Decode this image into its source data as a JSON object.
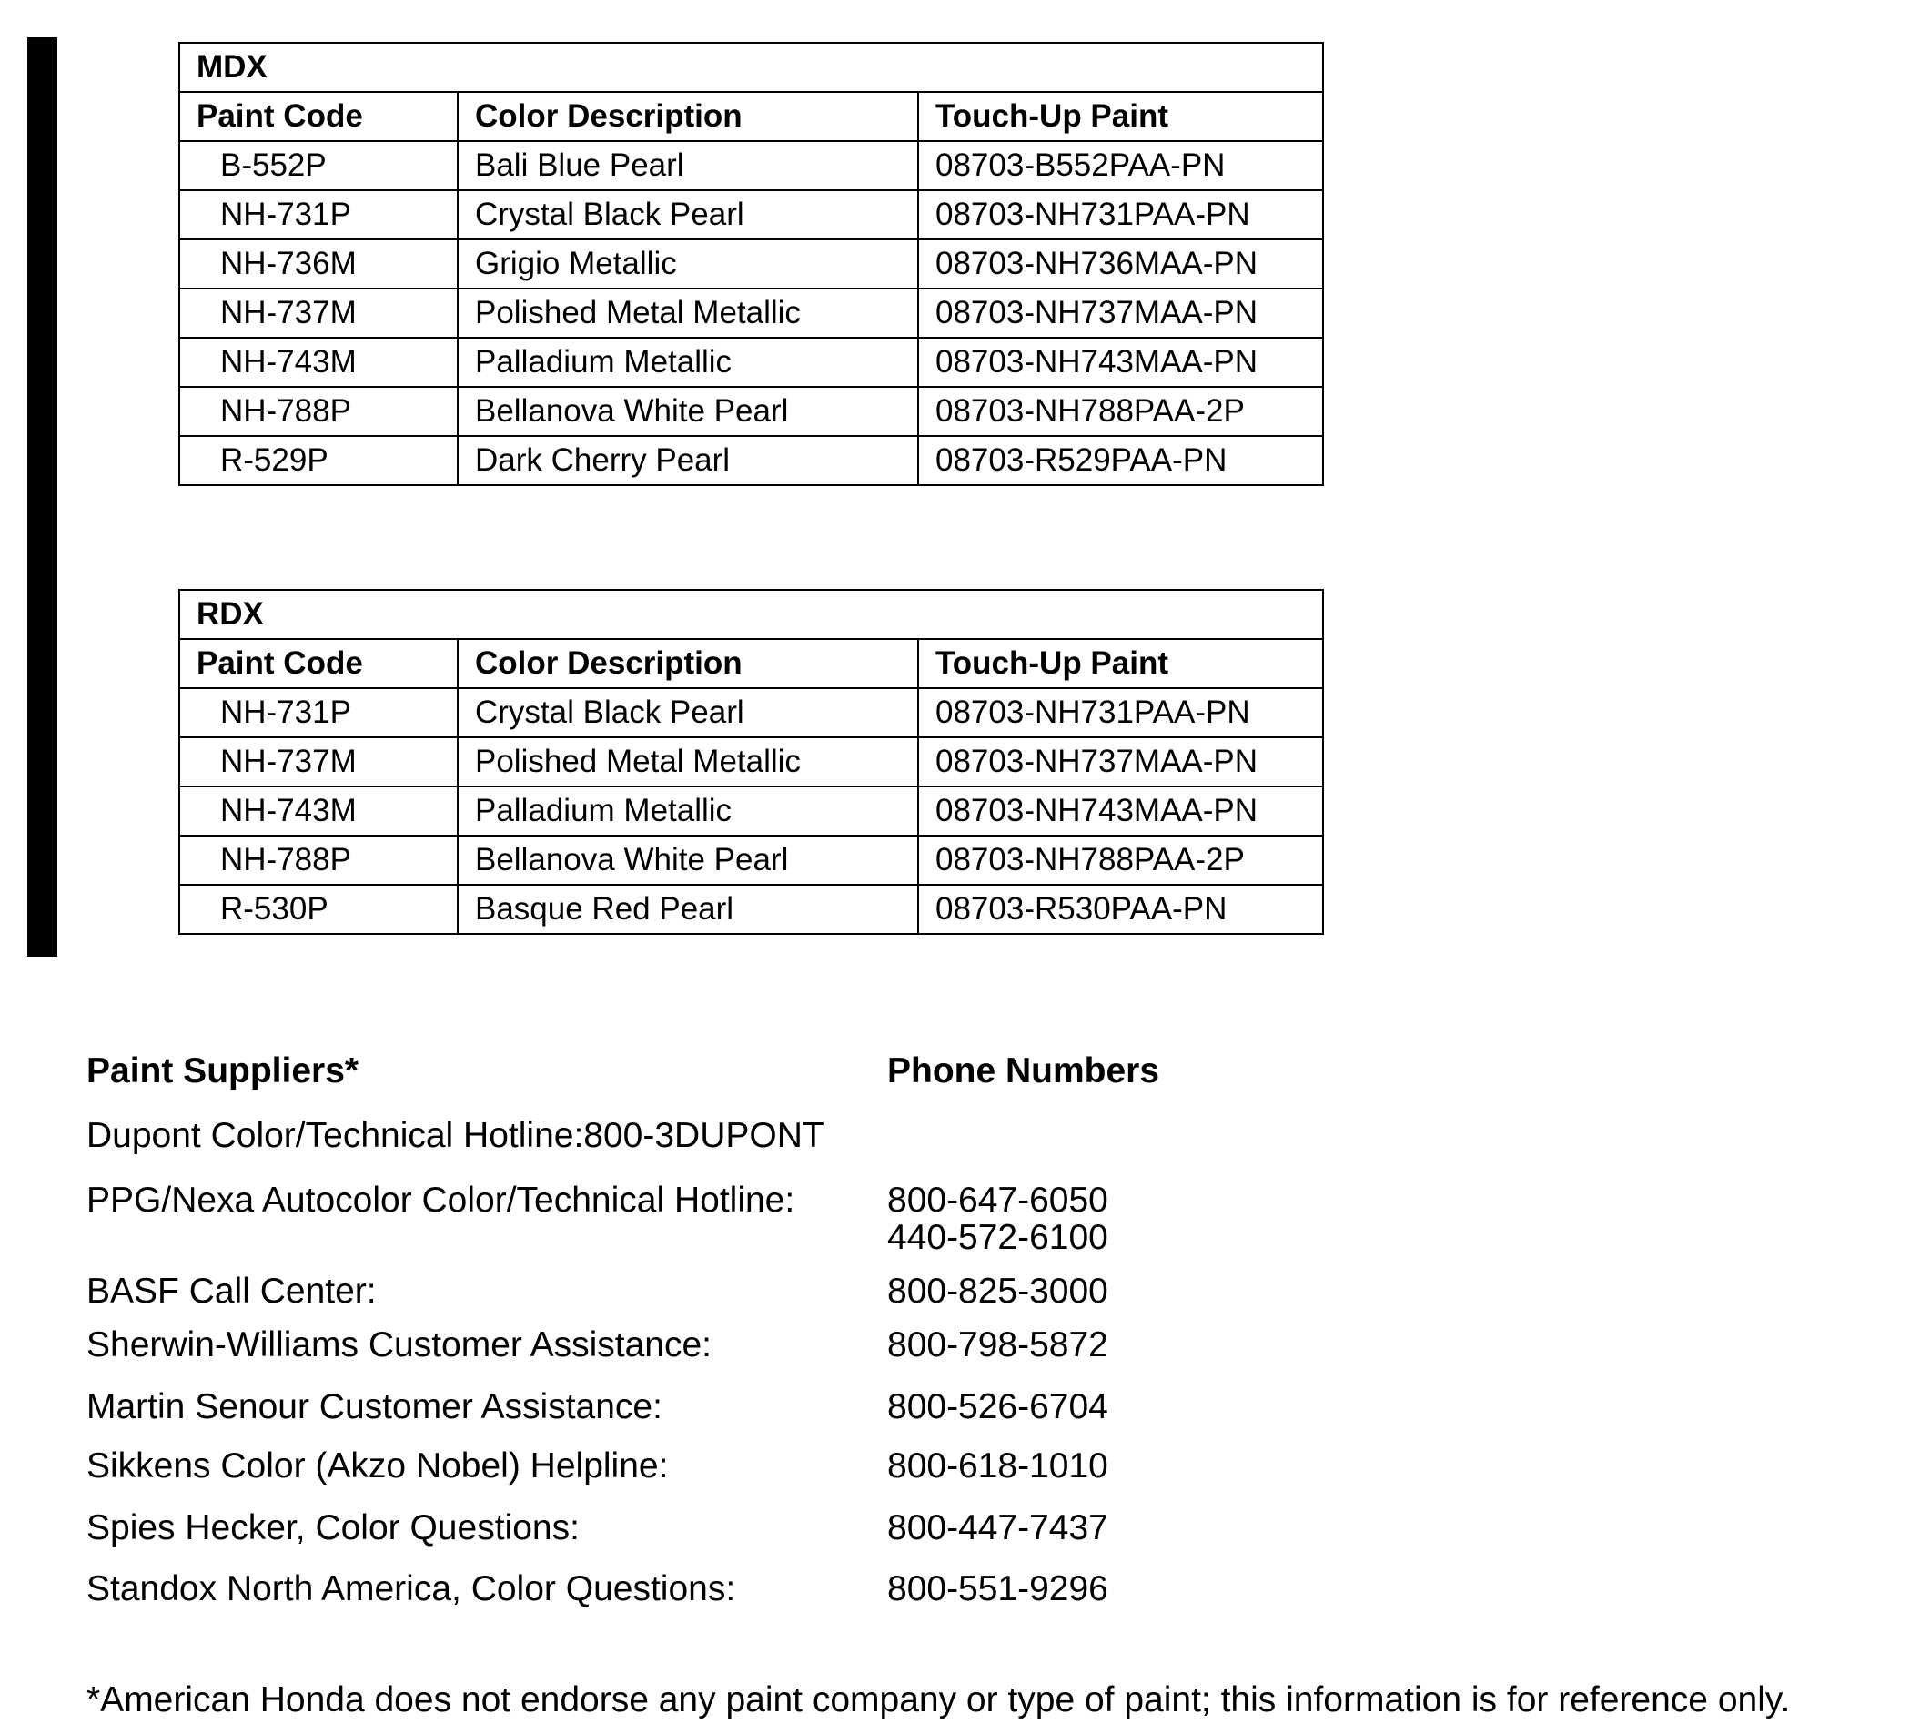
{
  "tables": [
    {
      "title": "MDX",
      "headers": [
        "Paint Code",
        "Color Description",
        "Touch-Up Paint"
      ],
      "rows": [
        [
          "B-552P",
          "Bali Blue Pearl",
          "08703-B552PAA-PN"
        ],
        [
          "NH-731P",
          "Crystal Black Pearl",
          "08703-NH731PAA-PN"
        ],
        [
          "NH-736M",
          "Grigio Metallic",
          "08703-NH736MAA-PN"
        ],
        [
          "NH-737M",
          "Polished Metal Metallic",
          "08703-NH737MAA-PN"
        ],
        [
          "NH-743M",
          "Palladium Metallic",
          "08703-NH743MAA-PN"
        ],
        [
          "NH-788P",
          "Bellanova White Pearl",
          "08703-NH788PAA-2P"
        ],
        [
          "R-529P",
          "Dark Cherry Pearl",
          "08703-R529PAA-PN"
        ]
      ]
    },
    {
      "title": "RDX",
      "headers": [
        "Paint Code",
        "Color Description",
        "Touch-Up Paint"
      ],
      "rows": [
        [
          "NH-731P",
          "Crystal Black Pearl",
          "08703-NH731PAA-PN"
        ],
        [
          "NH-737M",
          "Polished Metal Metallic",
          "08703-NH737MAA-PN"
        ],
        [
          "NH-743M",
          "Palladium Metallic",
          "08703-NH743MAA-PN"
        ],
        [
          "NH-788P",
          "Bellanova White Pearl",
          "08703-NH788PAA-2P"
        ],
        [
          "R-530P",
          "Basque Red Pearl",
          "08703-R530PAA-PN"
        ]
      ]
    }
  ],
  "suppliers": {
    "heading_left": "Paint Suppliers*",
    "heading_right": "Phone Numbers",
    "items": [
      {
        "name": "Dupont Color/Technical Hotline:800-3DUPONT",
        "phones": []
      },
      {
        "name": "PPG/Nexa Autocolor Color/Technical Hotline:",
        "phones": [
          "800-647-6050",
          "440-572-6100"
        ]
      },
      {
        "name": "BASF Call Center:",
        "phones": [
          "800-825-3000"
        ]
      },
      {
        "name": "Sherwin-Williams Customer Assistance:",
        "phones": [
          "800-798-5872"
        ]
      },
      {
        "name": "Martin Senour Customer Assistance:",
        "phones": [
          "800-526-6704"
        ]
      },
      {
        "name": "Sikkens Color (Akzo Nobel) Helpline:",
        "phones": [
          "800-618-1010"
        ]
      },
      {
        "name": "Spies Hecker, Color Questions:",
        "phones": [
          "800-447-7437"
        ]
      },
      {
        "name": "Standox North America, Color Questions:",
        "phones": [
          "800-551-9296"
        ]
      }
    ]
  },
  "footnote": "*American Honda does not endorse any paint company or type of paint; this information is for reference only."
}
